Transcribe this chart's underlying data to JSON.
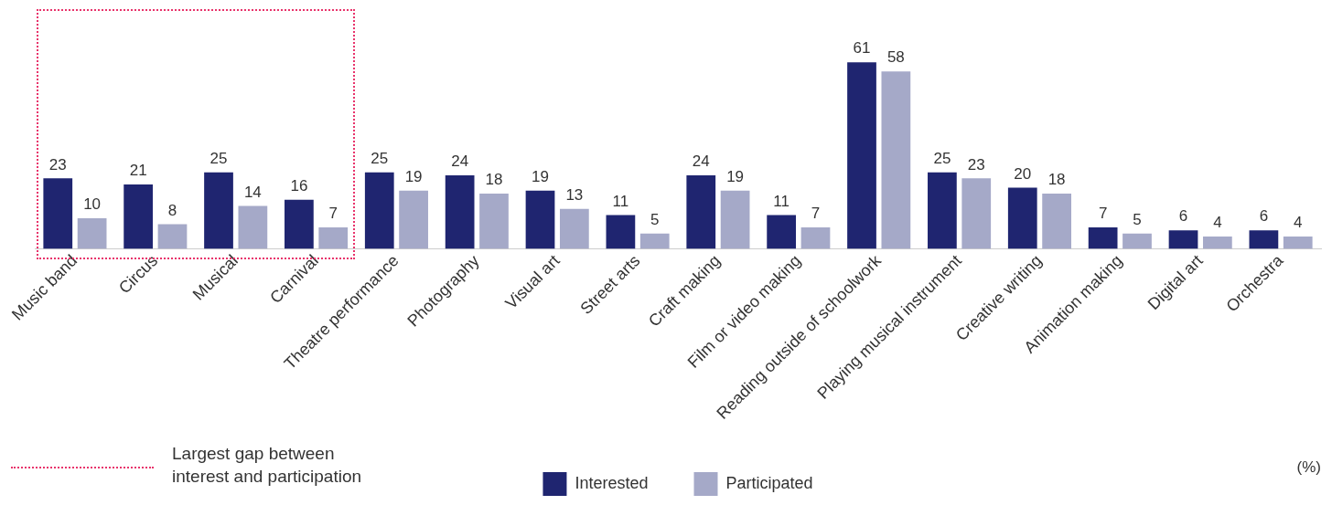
{
  "chart_data": {
    "type": "bar",
    "categories": [
      "Music band",
      "Circus",
      "Musical",
      "Carnival",
      "Theatre performance",
      "Photography",
      "Visual art",
      "Street arts",
      "Craft making",
      "Film or video making",
      "Reading outside of schoolwork",
      "Playing musical instrument",
      "Creative writing",
      "Animation making",
      "Digital art",
      "Orchestra"
    ],
    "series": [
      {
        "name": "Interested",
        "color": "#1f2570",
        "values": [
          23,
          21,
          25,
          16,
          25,
          24,
          19,
          11,
          24,
          11,
          61,
          25,
          20,
          7,
          6,
          6
        ]
      },
      {
        "name": "Participated",
        "color": "#a5a9c8",
        "values": [
          10,
          8,
          14,
          7,
          19,
          18,
          13,
          5,
          19,
          7,
          58,
          23,
          18,
          5,
          4,
          4
        ]
      }
    ],
    "data_labels": true,
    "tick_labels": "x",
    "grid": false,
    "legend": "bottom",
    "annotations": [
      "Largest gap between interest and participation",
      "(%)"
    ]
  }
}
